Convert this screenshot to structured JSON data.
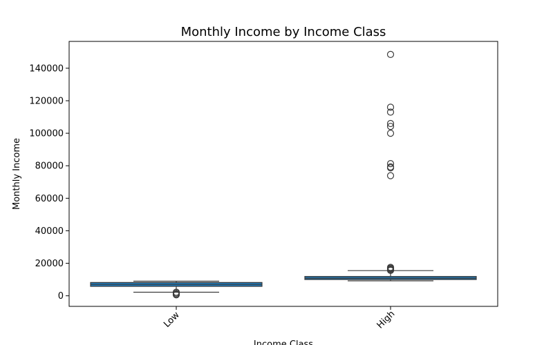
{
  "chart_data": {
    "type": "box",
    "title": "Monthly Income by Income Class",
    "xlabel": "Income Class",
    "ylabel": "Monthly Income",
    "categories": [
      "Low",
      "High"
    ],
    "ylim": [
      -6500,
      156500
    ],
    "yticks": [
      0,
      20000,
      40000,
      60000,
      80000,
      100000,
      120000,
      140000
    ],
    "grid": false,
    "box_color": "#1f77b4",
    "line_color": "#3b3b3b",
    "boxes": [
      {
        "category": "Low",
        "whisker_low": 2200,
        "q1": 5800,
        "median": 7000,
        "q3": 8200,
        "whisker_high": 9000,
        "outliers": [
          2200,
          1600,
          1000,
          600
        ]
      },
      {
        "category": "High",
        "whisker_low": 9200,
        "q1": 10000,
        "median": 10800,
        "q3": 11900,
        "whisker_high": 15500,
        "outliers": [
          15600,
          16000,
          16500,
          17000,
          17500,
          73900,
          78700,
          79300,
          81300,
          100000,
          104200,
          106000,
          113000,
          116000,
          148500
        ]
      }
    ]
  }
}
